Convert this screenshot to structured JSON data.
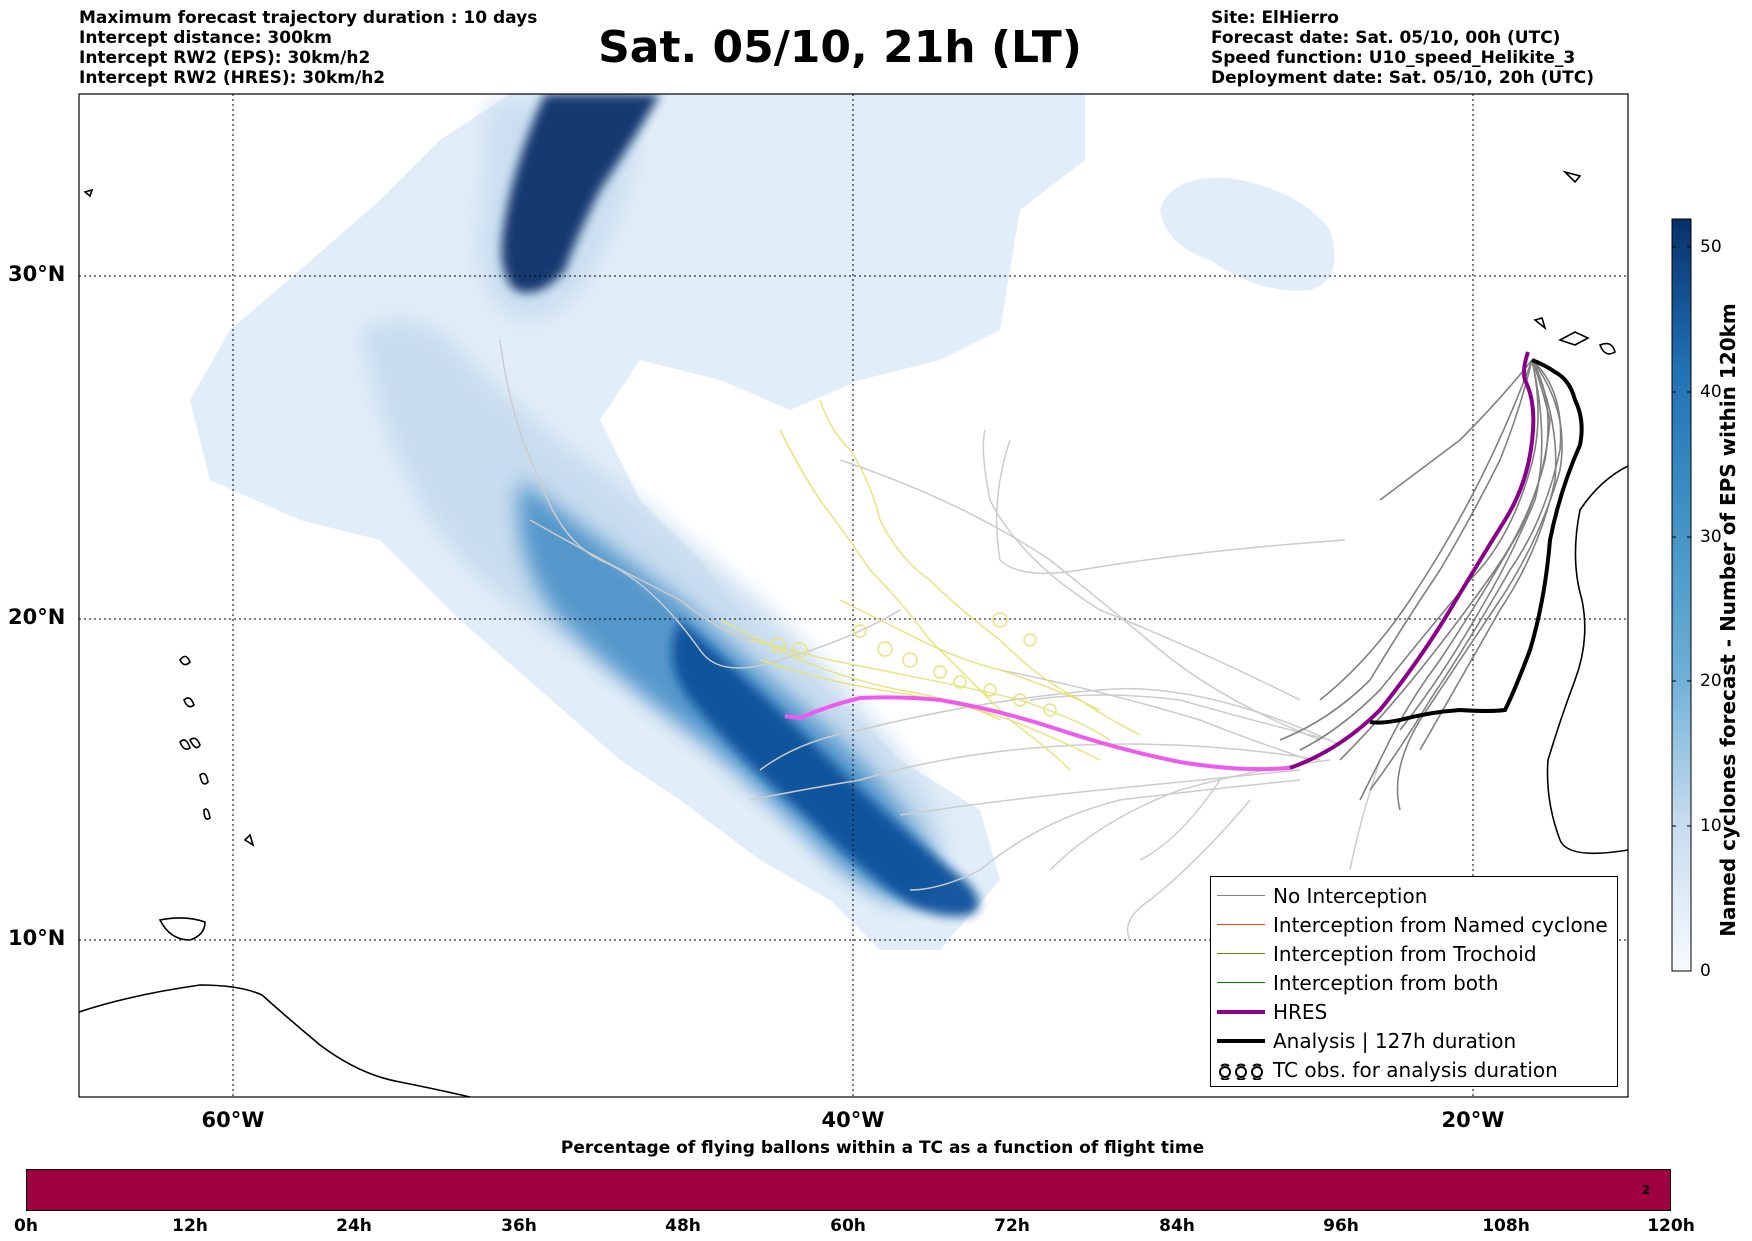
{
  "header": {
    "left_lines": [
      "Maximum forecast trajectory duration : 10 days",
      "Intercept distance: 300km",
      "Intercept RW2 (EPS):  30km/h2",
      "Intercept RW2 (HRES): 30km/h2"
    ],
    "title": "Sat. 05/10, 21h (LT)",
    "right_lines": [
      "Site: ElHierro",
      "Forecast date: Sat. 05/10, 00h (UTC)",
      "Speed function: U10_speed_Helikite_3",
      "Deployment date: Sat. 05/10, 20h (UTC)"
    ]
  },
  "map": {
    "lat_labels": [
      "30°N",
      "20°N",
      "10°N"
    ],
    "lon_labels": [
      "60°W",
      "40°W",
      "20°W"
    ],
    "colors": {
      "no_interception": "#808080",
      "named_cyclone": "#ff4500",
      "trochoid": "#808000",
      "both": "#008000",
      "hres": "#8b008b",
      "analysis": "#000000",
      "shade_dark": "#08306b",
      "shade_light": "#deebf7"
    }
  },
  "legend": {
    "items": [
      {
        "label": "No Interception",
        "icon": "thin-gray-line"
      },
      {
        "label": "Interception from Named cyclone",
        "icon": "thin-orange-line"
      },
      {
        "label": "Interception from Trochoid",
        "icon": "thin-olive-line"
      },
      {
        "label": "Interception from both",
        "icon": "thin-green-line"
      },
      {
        "label": "HRES",
        "icon": "thick-purple-line"
      },
      {
        "label": "Analysis | 127h duration",
        "icon": "thick-black-line"
      },
      {
        "label": "TC obs. for analysis duration",
        "icon": "cyclone-symbols"
      }
    ]
  },
  "colorbar": {
    "title": "Named cyclones forecast - Number of EPS within 120km",
    "ticks": [
      "50",
      "40",
      "30",
      "20",
      "10",
      "0"
    ]
  },
  "flight_bar": {
    "title": "Percentage of flying ballons within a TC as a function of flight time",
    "end_label": "2",
    "time_labels": [
      "0h",
      "12h",
      "24h",
      "36h",
      "48h",
      "60h",
      "72h",
      "84h",
      "96h",
      "108h",
      "120h"
    ]
  }
}
